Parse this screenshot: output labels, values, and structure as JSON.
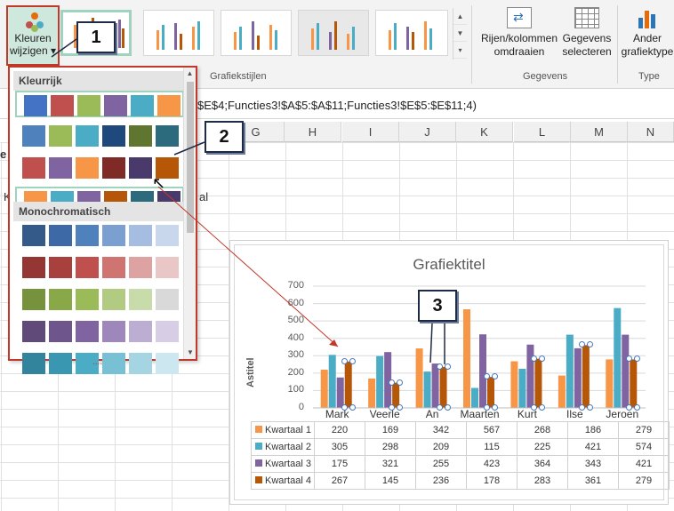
{
  "ribbon": {
    "change_colors_label_1": "Kleuren",
    "change_colors_label_2": "wijzigen",
    "chart_styles_group": "Grafiekstijlen",
    "switch_label_1": "Rijen/kolommen",
    "switch_label_2": "omdraaien",
    "select_label_1": "Gegevens",
    "select_label_2": "selecteren",
    "data_group": "Gegevens",
    "change_type_label_1": "Ander",
    "change_type_label_2": "grafiektype",
    "type_group": "Type"
  },
  "formula_bar": {
    "text": "$E$4;Functies3!$A$5:$A$11;Functies3!$E$5:$E$11;4)"
  },
  "columns": [
    "G",
    "H",
    "I",
    "J",
    "K",
    "L",
    "M",
    "N"
  ],
  "side_text": {
    "left_fragment": "K",
    "al_fragment": "al",
    "bold_fragment": "e"
  },
  "color_dropdown": {
    "section_colorful": "Kleurrijk",
    "section_mono": "Monochromatisch",
    "colorful_rows": [
      [
        "#4472c4",
        "#c0504d",
        "#9bbb59",
        "#8064a2",
        "#4bacc6",
        "#f79646"
      ],
      [
        "#4f81bd",
        "#9bbb59",
        "#4bacc6",
        "#1f497d",
        "#5f7530",
        "#2c6b7e"
      ],
      [
        "#c0504d",
        "#8064a2",
        "#f79646",
        "#7f2a27",
        "#4a3a6b",
        "#b65708"
      ],
      [
        "#f79646",
        "#4bacc6",
        "#8064a2",
        "#b65708",
        "#2c6b7e",
        "#4a3a6b"
      ]
    ],
    "mono_rows": [
      [
        "#345a8a",
        "#3d69a6",
        "#4f81bd",
        "#7a9fd0",
        "#a5bde0",
        "#c9d7ec"
      ],
      [
        "#943634",
        "#a8413e",
        "#c0504d",
        "#d07472",
        "#dca3a2",
        "#e8c7c6"
      ],
      [
        "#76923c",
        "#89a847",
        "#9bbb59",
        "#b1cb83",
        "#c7dbab",
        "#d9d9d9"
      ],
      [
        "#5f4a7a",
        "#6e568d",
        "#8064a2",
        "#9e88bb",
        "#bcaed2",
        "#d7cde4"
      ],
      [
        "#31849b",
        "#3a97b1",
        "#4bacc6",
        "#78c1d4",
        "#a5d5e3",
        "#cce7ef"
      ]
    ]
  },
  "callouts": {
    "one": "1",
    "two": "2",
    "three": "3"
  },
  "chart_data": {
    "type": "bar",
    "title": "Grafiektitel",
    "ylabel": "Astitel",
    "ylim": [
      0,
      700
    ],
    "yticks": [
      "700",
      "600",
      "500",
      "400",
      "300",
      "200",
      "100",
      "0"
    ],
    "categories": [
      "Mark",
      "Veerle",
      "An",
      "Maarten",
      "Kurt",
      "Ilse",
      "Jeroen"
    ],
    "series": [
      {
        "name": "Kwartaal 1",
        "color": "#f79646",
        "values": [
          220,
          169,
          342,
          567,
          268,
          186,
          279
        ]
      },
      {
        "name": "Kwartaal 2",
        "color": "#4bacc6",
        "values": [
          305,
          298,
          209,
          115,
          225,
          421,
          574
        ]
      },
      {
        "name": "Kwartaal 3",
        "color": "#8064a2",
        "values": [
          175,
          321,
          255,
          423,
          364,
          343,
          421
        ]
      },
      {
        "name": "Kwartaal 4",
        "color": "#b65708",
        "values": [
          267,
          145,
          236,
          178,
          283,
          361,
          279
        ]
      }
    ],
    "data_table": true,
    "grid": true
  }
}
